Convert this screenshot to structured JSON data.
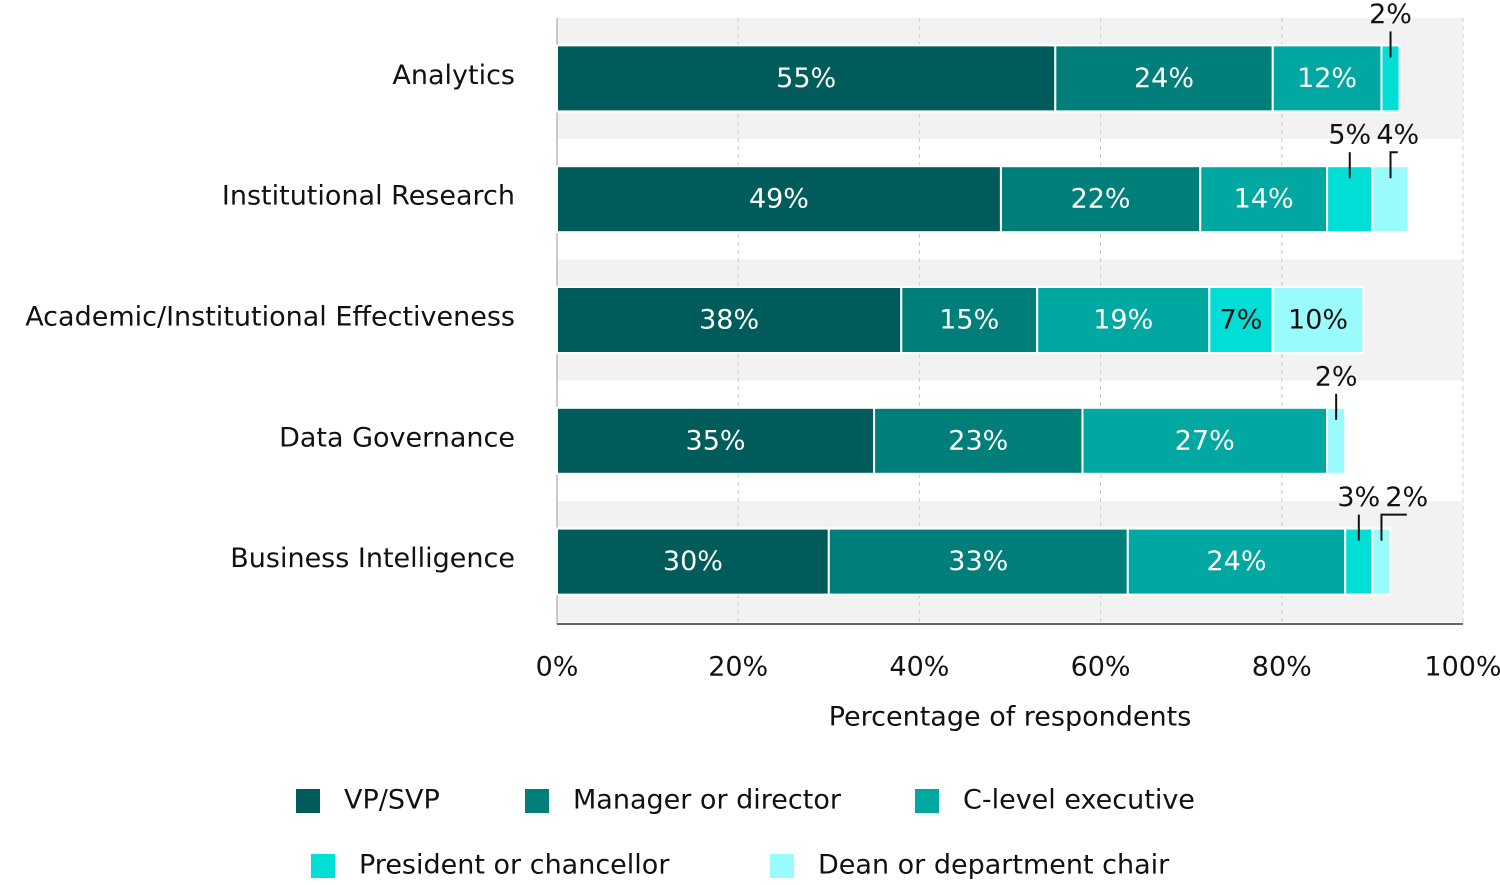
{
  "chart_data": {
    "type": "stacked-bar",
    "orientation": "horizontal",
    "x_label": "Percentage of respondents",
    "categories": [
      "Analytics",
      "Institutional Research",
      "Academic/Institutional Effectiveness",
      "Data Governance",
      "Business Intelligence"
    ],
    "series": [
      {
        "name": "VP/SVP",
        "color": "#005b5b",
        "values": [
          55,
          49,
          38,
          35,
          30
        ],
        "value_labels": [
          "55%",
          "49%",
          "38%",
          "35%",
          "30%"
        ]
      },
      {
        "name": "Manager or director",
        "color": "#007f7a",
        "values": [
          24,
          22,
          15,
          23,
          33
        ],
        "value_labels": [
          "24%",
          "22%",
          "15%",
          "23%",
          "33%"
        ]
      },
      {
        "name": "C-level executive",
        "color": "#00a8a1",
        "values": [
          12,
          14,
          19,
          27,
          24
        ],
        "value_labels": [
          "12%",
          "14%",
          "19%",
          "27%",
          "24%"
        ]
      },
      {
        "name": "President or chancellor",
        "color": "#00ded6",
        "values": [
          2,
          5,
          7,
          null,
          3
        ],
        "value_labels": [
          "2%",
          "5%",
          "7%",
          null,
          "3%"
        ]
      },
      {
        "name": "Dean or department chair",
        "color": "#99fbfb",
        "values": [
          null,
          4,
          10,
          2,
          2
        ],
        "value_labels": [
          null,
          "4%",
          "10%",
          "2%",
          "2%"
        ]
      }
    ],
    "xlim": [
      0,
      100
    ],
    "xticks": [
      {
        "value": 0,
        "label": "0%"
      },
      {
        "value": 20,
        "label": "20%"
      },
      {
        "value": 40,
        "label": "40%"
      },
      {
        "value": 60,
        "label": "60%"
      },
      {
        "value": 80,
        "label": "80%"
      },
      {
        "value": 100,
        "label": "100%"
      }
    ],
    "grid": true
  }
}
